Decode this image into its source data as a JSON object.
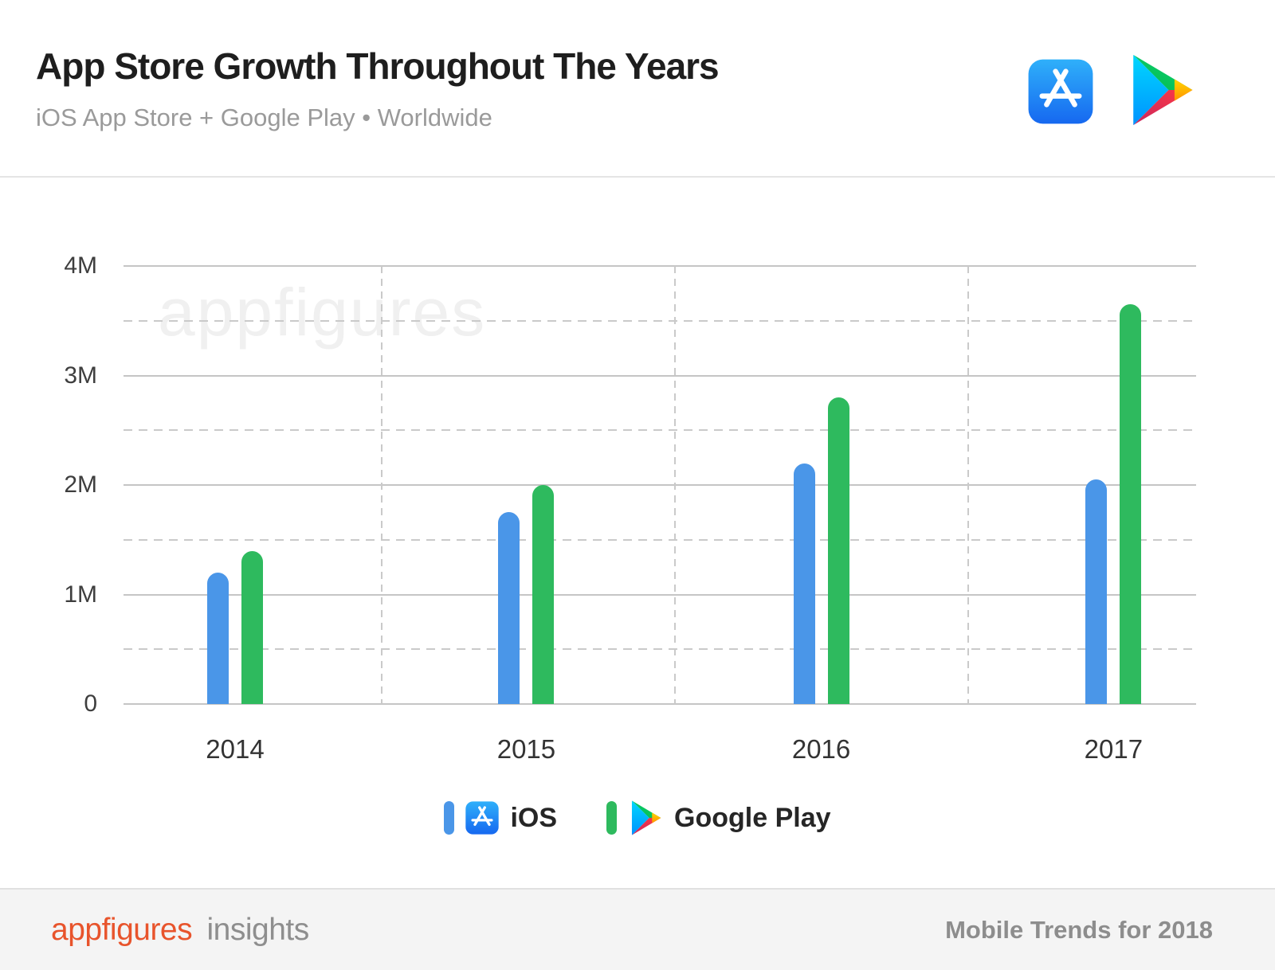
{
  "header": {
    "title": "App Store Growth Throughout The Years",
    "subtitle": "iOS App Store + Google Play • Worldwide"
  },
  "icons": {
    "header": [
      "app-store-icon",
      "google-play-icon"
    ],
    "legend": [
      "app-store-icon",
      "google-play-icon"
    ]
  },
  "chart_data": {
    "type": "bar",
    "title": "App Store Growth Throughout The Years",
    "subtitle": "iOS App Store + Google Play • Worldwide",
    "unit": "millions of apps",
    "categories": [
      "2014",
      "2015",
      "2016",
      "2017"
    ],
    "series": [
      {
        "name": "iOS",
        "color": "#4a96e8",
        "values_millions": [
          1.2,
          1.75,
          2.2,
          2.05
        ]
      },
      {
        "name": "Google Play",
        "color": "#2eba5e",
        "values_millions": [
          1.4,
          2.0,
          2.8,
          3.65
        ]
      }
    ],
    "ylim_millions": [
      0,
      4
    ],
    "y_ticks": [
      "0",
      "1M",
      "2M",
      "3M",
      "4M"
    ],
    "grid": "horizontal solid lines every 1M, dashed lines every 0.5M, vertical dashed separators between year groups",
    "legend_position": "bottom",
    "watermark": "appfigures"
  },
  "legend": {
    "items": [
      {
        "label": "iOS",
        "color": "#4a96e8"
      },
      {
        "label": "Google Play",
        "color": "#2eba5e"
      }
    ]
  },
  "footer": {
    "brand": "appfigures",
    "brand_suffix": "insights",
    "right_text": "Mobile Trends for 2018"
  },
  "colors": {
    "bar_ios": "#4a96e8",
    "bar_google_play": "#2eba5e",
    "brand_orange": "#e8542c",
    "footer_gray": "#8d8d8d",
    "gridline": "#c5c5c5",
    "footer_background": "#f4f4f4"
  }
}
